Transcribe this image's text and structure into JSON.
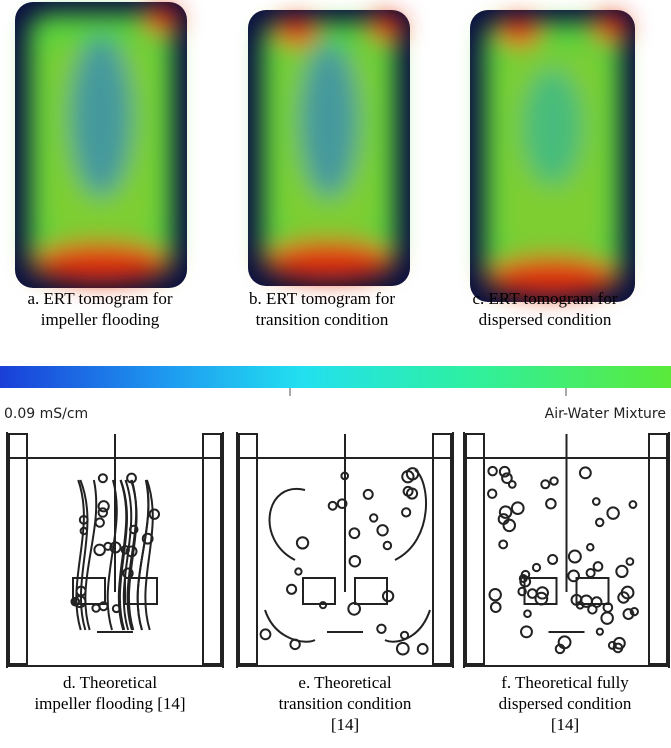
{
  "tomograms": [
    {
      "caption": [
        "a. ERT tomogram for",
        "impeller flooding"
      ]
    },
    {
      "caption": [
        "b. ERT tomogram for",
        "transition condition"
      ]
    },
    {
      "caption": [
        "c. ERT tomogram for",
        "dispersed condition"
      ]
    }
  ],
  "colorbar": {
    "min_label": "0.09 mS/cm",
    "max_label": "Air-Water Mixture"
  },
  "diagrams": [
    {
      "caption": [
        "d. Theoretical",
        "impeller flooding [14]"
      ]
    },
    {
      "caption": [
        "e. Theoretical",
        "transition condition",
        "[14]"
      ]
    },
    {
      "caption": [
        "f. Theoretical fully",
        "dispersed condition",
        "[14]"
      ]
    }
  ]
}
